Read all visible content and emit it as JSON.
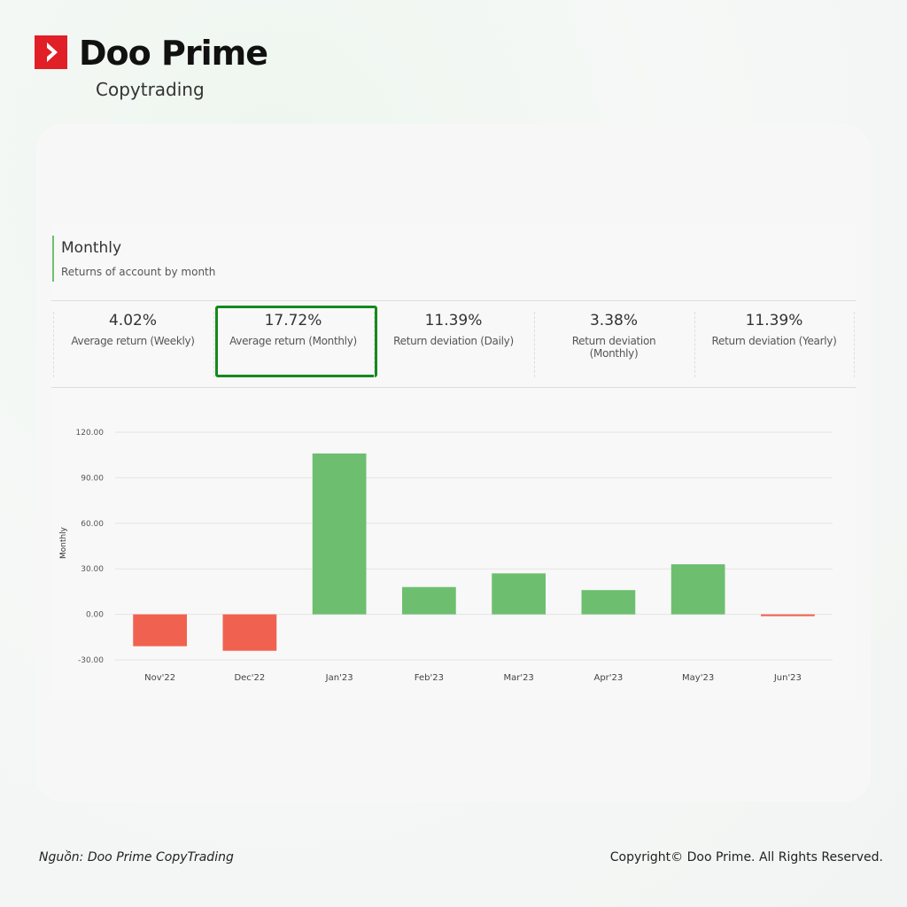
{
  "brand": {
    "name": "Doo Prime",
    "product": "Copytrading"
  },
  "panel": {
    "title": "Monthly",
    "subtitle": "Returns of account by month"
  },
  "stats": [
    {
      "value": "4.02%",
      "label": "Average return (Weekly)"
    },
    {
      "value": "17.72%",
      "label": "Average return (Monthly)"
    },
    {
      "value": "11.39%",
      "label": "Return deviation (Daily)"
    },
    {
      "value": "3.38%",
      "label": "Return deviation (Monthly)"
    },
    {
      "value": "11.39%",
      "label": "Return deviation (Yearly)"
    }
  ],
  "chart_data": {
    "type": "bar",
    "y_label": "Monthly",
    "categories": [
      "Nov'22",
      "Dec'22",
      "Jan'23",
      "Feb'23",
      "Mar'23",
      "Apr'23",
      "May'23",
      "Jun'23"
    ],
    "values": [
      -21,
      -24,
      106,
      18,
      27,
      16,
      33,
      -1.2
    ],
    "colors": [
      "#f0624f",
      "#f0624f",
      "#6dbf6f",
      "#6dbf6f",
      "#6dbf6f",
      "#6dbf6f",
      "#6dbf6f",
      "#f0624f"
    ],
    "ylim": [
      -30,
      120
    ],
    "yticks": [
      {
        "value": -30,
        "label": "-30.00"
      },
      {
        "value": 0,
        "label": "0.00"
      },
      {
        "value": 30,
        "label": "30.00"
      },
      {
        "value": 60,
        "label": "60.00"
      },
      {
        "value": 90,
        "label": "90.00"
      },
      {
        "value": 120,
        "label": "120.00"
      }
    ],
    "grid": true
  },
  "footer": {
    "source": "Nguồn: Doo Prime CopyTrading",
    "copyright": "Copyright© Doo Prime. All Rights Reserved."
  }
}
